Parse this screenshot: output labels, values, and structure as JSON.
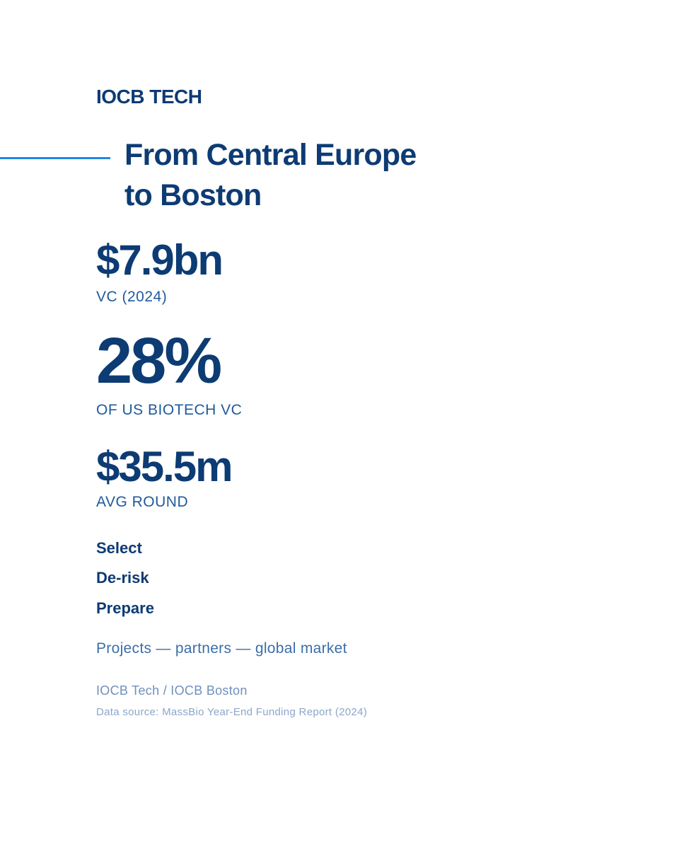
{
  "brand": "IOCB TECH",
  "title": {
    "lines": [
      "From Central Europe",
      "to Boston"
    ]
  },
  "stats": [
    {
      "value": "$7.9bn",
      "label": "VC (2024)"
    },
    {
      "value": "28%",
      "label": "OF US BIOTECH VC"
    },
    {
      "value": "$35.5m",
      "label": "AVG ROUND"
    }
  ],
  "steps": [
    "Select",
    "De-risk",
    "Prepare"
  ],
  "tagline": "Projects — partners — global market",
  "footer": {
    "credit": "IOCB Tech / IOCB Boston",
    "source": "Data source: MassBio Year-End Funding Report (2024)"
  }
}
